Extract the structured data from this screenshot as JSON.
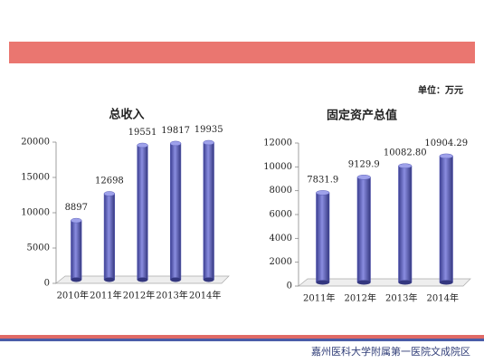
{
  "unit": "单位：万元",
  "footer": "嘉州医科大学附属第一医院文成院区",
  "chart_data": [
    {
      "type": "bar",
      "title": "总收入",
      "categories": [
        "2010年",
        "2011年",
        "2012年",
        "2013年",
        "2014年"
      ],
      "values": [
        8897,
        12698,
        19551,
        19817,
        19935
      ],
      "color": "#5b5fb8",
      "ylim": [
        0,
        20000
      ],
      "yticks": [
        0,
        5000,
        10000,
        15000,
        20000
      ]
    },
    {
      "type": "bar",
      "title": "固定资产总值",
      "categories": [
        "2011年",
        "2012年",
        "2013年",
        "2014年"
      ],
      "values": [
        7831.9,
        9129.9,
        10082.8,
        10904.29
      ],
      "value_labels": [
        "7831.9",
        "9129.9",
        "10082.80",
        "10904.29"
      ],
      "color": "#5b5fb8",
      "ylim": [
        0,
        12000
      ],
      "yticks": [
        0,
        2000,
        4000,
        6000,
        8000,
        10000,
        12000
      ]
    }
  ]
}
